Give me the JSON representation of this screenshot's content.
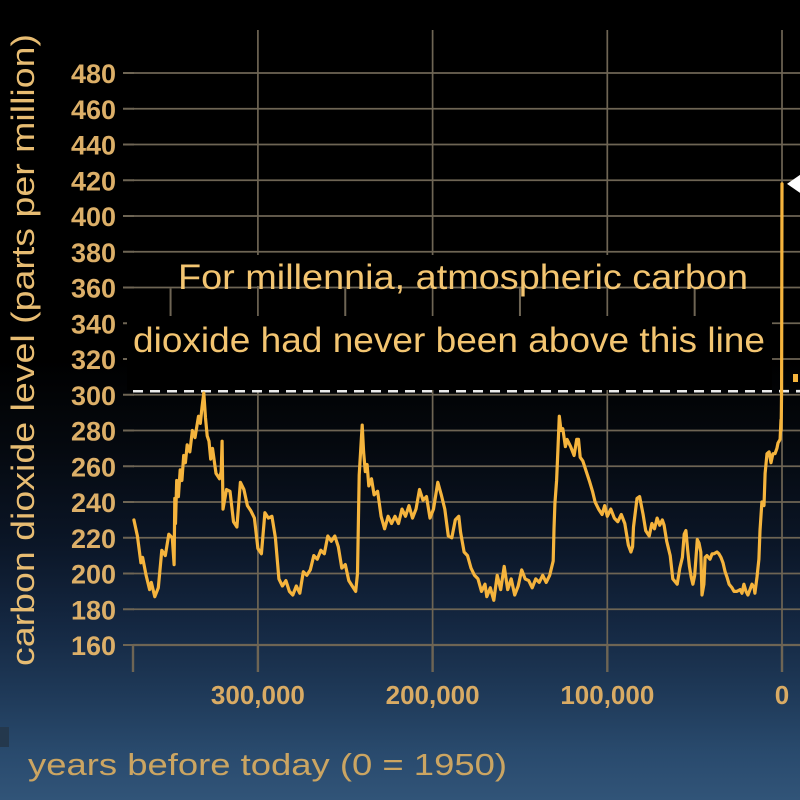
{
  "page": {
    "kind": "presentation-slide",
    "background_top_color": "#000000",
    "background_bottom_color": "#315478"
  },
  "colors": {
    "grid": "#6e6554",
    "series": "#f5b43d",
    "tick_labels": "#d9ab64",
    "y_tick_labels": "#dcaf68",
    "annotation_text": "#f3c571",
    "threshold_dash": "#ebebeb",
    "annotation_box": "#000000",
    "current_marker": "#ffffff"
  },
  "chart_data": {
    "type": "line",
    "title": "",
    "ylabel": "carbon dioxide level (parts per million)",
    "xlabel": "years before today (0 = 1950)",
    "annotation": {
      "line1": "For millennia, atmospheric carbon",
      "line2": "dioxide had never been above this line"
    },
    "legend": [],
    "grid": true,
    "xlim": [
      371500,
      -10300
    ],
    "ylim": [
      160,
      504
    ],
    "y_ticks": [
      480,
      460,
      440,
      420,
      400,
      380,
      360,
      340,
      320,
      300,
      280,
      260,
      240,
      220,
      200,
      180,
      160
    ],
    "x_ticks": [
      {
        "value": 300000,
        "label": "300,000"
      },
      {
        "value": 200000,
        "label": "200,000"
      },
      {
        "value": 100000,
        "label": "100,000"
      },
      {
        "value": 0,
        "label": "0"
      }
    ],
    "x_minor_ticks": [
      350000,
      250000,
      150000,
      50000
    ],
    "threshold_line": {
      "value": 302,
      "style": "dashed"
    },
    "current_peak_ppm": 418,
    "series": [
      {
        "name": "co2-ice-core-record",
        "color": "#f5b43d",
        "points": [
          [
            371000,
            230
          ],
          [
            369000,
            221
          ],
          [
            367000,
            206
          ],
          [
            366000,
            209
          ],
          [
            364000,
            199
          ],
          [
            362000,
            191
          ],
          [
            361000,
            195
          ],
          [
            359000,
            187
          ],
          [
            357000,
            192
          ],
          [
            355000,
            213
          ],
          [
            353000,
            210
          ],
          [
            351000,
            222
          ],
          [
            349000,
            220
          ],
          [
            348000,
            205
          ],
          [
            347600,
            242
          ],
          [
            347200,
            228
          ],
          [
            346500,
            252
          ],
          [
            345500,
            243
          ],
          [
            344500,
            258
          ],
          [
            343500,
            252
          ],
          [
            342500,
            266
          ],
          [
            341500,
            262
          ],
          [
            340500,
            272
          ],
          [
            339000,
            268
          ],
          [
            337500,
            280
          ],
          [
            336000,
            276
          ],
          [
            334000,
            288
          ],
          [
            333000,
            284
          ],
          [
            332000,
            293
          ],
          [
            331000,
            301
          ],
          [
            330000,
            287
          ],
          [
            329000,
            277
          ],
          [
            328000,
            274
          ],
          [
            327000,
            264
          ],
          [
            326000,
            270
          ],
          [
            324000,
            256
          ],
          [
            322000,
            253
          ],
          [
            321000,
            257
          ],
          [
            320500,
            274
          ],
          [
            320000,
            236
          ],
          [
            318000,
            247
          ],
          [
            316000,
            246
          ],
          [
            314000,
            229
          ],
          [
            312000,
            226
          ],
          [
            310000,
            251
          ],
          [
            308000,
            247
          ],
          [
            306000,
            238
          ],
          [
            304000,
            235
          ],
          [
            302000,
            231
          ],
          [
            300000,
            214
          ],
          [
            298000,
            211
          ],
          [
            296000,
            234
          ],
          [
            294000,
            231
          ],
          [
            292000,
            232
          ],
          [
            290000,
            220
          ],
          [
            288000,
            197
          ],
          [
            286000,
            193
          ],
          [
            284000,
            196
          ],
          [
            282000,
            190
          ],
          [
            280000,
            188
          ],
          [
            278000,
            193
          ],
          [
            276000,
            189
          ],
          [
            274000,
            201
          ],
          [
            272000,
            199
          ],
          [
            270000,
            202
          ],
          [
            268000,
            210
          ],
          [
            266000,
            208
          ],
          [
            264000,
            213
          ],
          [
            262000,
            211
          ],
          [
            260000,
            221
          ],
          [
            258000,
            218
          ],
          [
            256000,
            221
          ],
          [
            254000,
            215
          ],
          [
            252000,
            203
          ],
          [
            250000,
            205
          ],
          [
            248000,
            196
          ],
          [
            246000,
            193
          ],
          [
            244000,
            190
          ],
          [
            243000,
            200
          ],
          [
            242000,
            255
          ],
          [
            241000,
            272
          ],
          [
            240300,
            283
          ],
          [
            239500,
            268
          ],
          [
            238500,
            257
          ],
          [
            237500,
            261
          ],
          [
            236500,
            249
          ],
          [
            235000,
            253
          ],
          [
            233500,
            244
          ],
          [
            231500,
            246
          ],
          [
            229500,
            232
          ],
          [
            227500,
            225
          ],
          [
            225500,
            232
          ],
          [
            223500,
            228
          ],
          [
            221500,
            232
          ],
          [
            219500,
            228
          ],
          [
            217500,
            236
          ],
          [
            215500,
            232
          ],
          [
            213500,
            238
          ],
          [
            211500,
            231
          ],
          [
            209500,
            236
          ],
          [
            207500,
            247
          ],
          [
            205500,
            241
          ],
          [
            203500,
            243
          ],
          [
            201500,
            231
          ],
          [
            199500,
            236
          ],
          [
            197000,
            251
          ],
          [
            195000,
            244
          ],
          [
            193000,
            236
          ],
          [
            191000,
            221
          ],
          [
            189000,
            220
          ],
          [
            187000,
            230
          ],
          [
            185000,
            232
          ],
          [
            184000,
            223
          ],
          [
            182000,
            212
          ],
          [
            180000,
            210
          ],
          [
            178000,
            203
          ],
          [
            176000,
            199
          ],
          [
            174000,
            197
          ],
          [
            172000,
            190
          ],
          [
            170000,
            194
          ],
          [
            169000,
            187
          ],
          [
            167000,
            192
          ],
          [
            165000,
            185
          ],
          [
            163000,
            199
          ],
          [
            161000,
            191
          ],
          [
            159000,
            204
          ],
          [
            157000,
            191
          ],
          [
            155000,
            197
          ],
          [
            153000,
            188
          ],
          [
            151000,
            193
          ],
          [
            149000,
            202
          ],
          [
            147000,
            197
          ],
          [
            145000,
            196
          ],
          [
            143000,
            192
          ],
          [
            141000,
            197
          ],
          [
            139000,
            195
          ],
          [
            137000,
            199
          ],
          [
            135000,
            195
          ],
          [
            133000,
            199
          ],
          [
            131000,
            207
          ],
          [
            130500,
            225
          ],
          [
            130000,
            239
          ],
          [
            129000,
            252
          ],
          [
            128300,
            269
          ],
          [
            127500,
            288
          ],
          [
            126500,
            280
          ],
          [
            125500,
            281
          ],
          [
            124000,
            271
          ],
          [
            123000,
            275
          ],
          [
            121000,
            271
          ],
          [
            119000,
            266
          ],
          [
            117500,
            275
          ],
          [
            116500,
            275
          ],
          [
            115500,
            265
          ],
          [
            114000,
            263
          ],
          [
            112000,
            257
          ],
          [
            110000,
            251
          ],
          [
            108500,
            246
          ],
          [
            107000,
            240
          ],
          [
            105000,
            236
          ],
          [
            103000,
            233
          ],
          [
            101500,
            238
          ],
          [
            100000,
            232
          ],
          [
            98000,
            236
          ],
          [
            96000,
            231
          ],
          [
            94000,
            229
          ],
          [
            92000,
            233
          ],
          [
            90000,
            228
          ],
          [
            88000,
            216
          ],
          [
            86500,
            212
          ],
          [
            85500,
            215
          ],
          [
            85000,
            226
          ],
          [
            83000,
            242
          ],
          [
            81500,
            243
          ],
          [
            79500,
            233
          ],
          [
            78000,
            224
          ],
          [
            76000,
            221
          ],
          [
            74500,
            228
          ],
          [
            73000,
            225
          ],
          [
            71500,
            231
          ],
          [
            70000,
            227
          ],
          [
            68500,
            230
          ],
          [
            67500,
            227
          ],
          [
            66000,
            218
          ],
          [
            64000,
            210
          ],
          [
            62500,
            197
          ],
          [
            60000,
            194
          ],
          [
            58500,
            203
          ],
          [
            57000,
            209
          ],
          [
            56000,
            222
          ],
          [
            55000,
            224
          ],
          [
            54000,
            213
          ],
          [
            53000,
            204
          ],
          [
            52000,
            198
          ],
          [
            51000,
            194
          ],
          [
            50000,
            199
          ],
          [
            48500,
            219
          ],
          [
            47500,
            217
          ],
          [
            46500,
            212
          ],
          [
            45800,
            188
          ],
          [
            44700,
            194
          ],
          [
            44000,
            209
          ],
          [
            43000,
            210
          ],
          [
            41200,
            208
          ],
          [
            40000,
            211
          ],
          [
            38900,
            211
          ],
          [
            37200,
            212
          ],
          [
            36100,
            211
          ],
          [
            34900,
            209
          ],
          [
            33800,
            206
          ],
          [
            32600,
            201
          ],
          [
            31500,
            198
          ],
          [
            30300,
            194
          ],
          [
            28600,
            192
          ],
          [
            27500,
            190
          ],
          [
            25800,
            190
          ],
          [
            24000,
            191
          ],
          [
            22900,
            189
          ],
          [
            21800,
            194
          ],
          [
            20600,
            190
          ],
          [
            19500,
            188
          ],
          [
            18300,
            191
          ],
          [
            17200,
            194
          ],
          [
            16000,
            192
          ],
          [
            15500,
            189
          ],
          [
            14300,
            198
          ],
          [
            13200,
            208
          ],
          [
            12600,
            224
          ],
          [
            11500,
            240
          ],
          [
            10300,
            238
          ],
          [
            9700,
            256
          ],
          [
            8600,
            267
          ],
          [
            7400,
            268
          ],
          [
            6300,
            262
          ],
          [
            5200,
            267
          ],
          [
            4000,
            267
          ],
          [
            2900,
            270
          ],
          [
            2300,
            273
          ],
          [
            1100,
            275
          ],
          [
            600,
            286
          ],
          [
            500,
            280
          ],
          [
            350,
            292
          ],
          [
            250,
            304
          ],
          [
            0,
            418
          ]
        ]
      }
    ]
  }
}
